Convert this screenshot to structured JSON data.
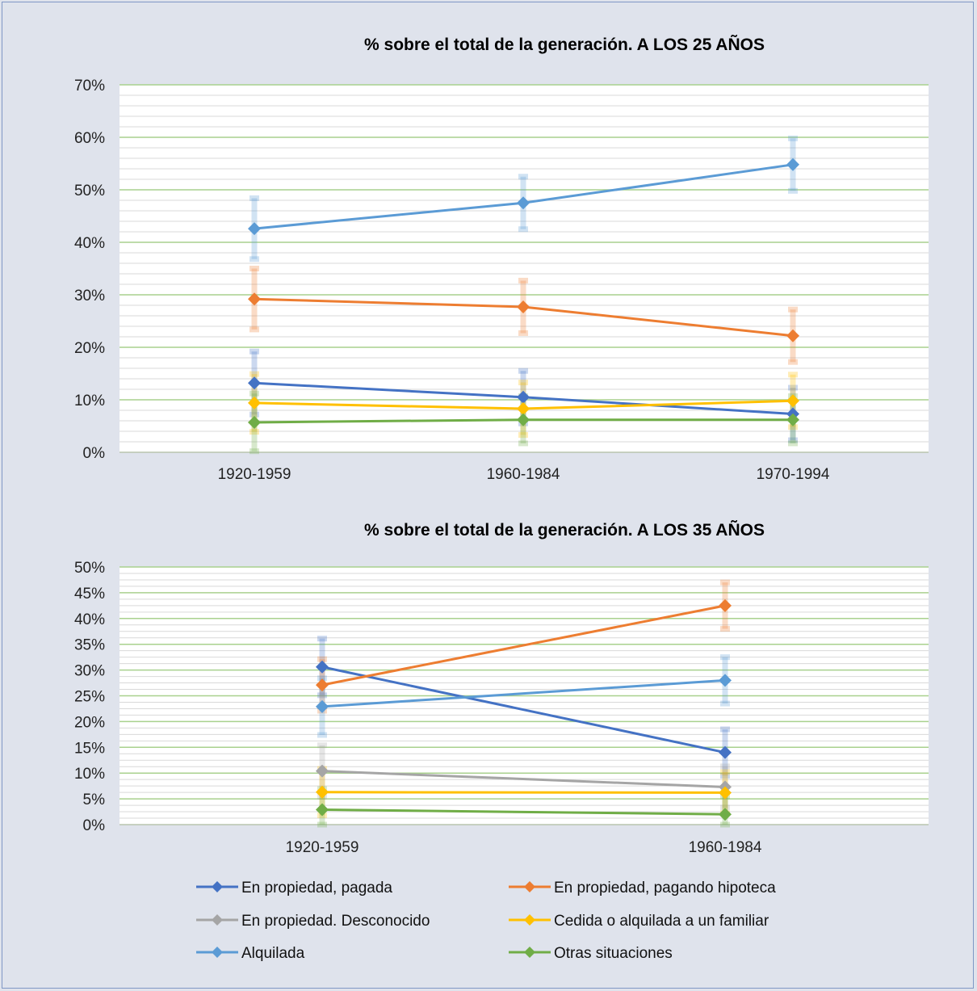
{
  "chart_data": [
    {
      "type": "line",
      "title": "% sobre el total de la generación. A LOS 25 AÑOS",
      "categories": [
        "1920-1959",
        "1960-1984",
        "1970-1994"
      ],
      "ylim": [
        0,
        0.7
      ],
      "y_major_ticks": [
        "0%",
        "10%",
        "20%",
        "30%",
        "40%",
        "50%",
        "60%",
        "70%"
      ],
      "grid": true,
      "series": [
        {
          "name": "En propiedad, pagada",
          "color": "#4472c4",
          "values": [
            0.132,
            0.105,
            0.073
          ],
          "err": [
            0.06,
            0.05,
            0.05
          ]
        },
        {
          "name": "En propiedad, pagando hipoteca",
          "color": "#ed7d31",
          "values": [
            0.292,
            0.277,
            0.222
          ],
          "err": [
            0.058,
            0.05,
            0.05
          ]
        },
        {
          "name": "Cedida o alquilada a un familiar",
          "color": "#ffc000",
          "values": [
            0.094,
            0.083,
            0.098
          ],
          "err": [
            0.055,
            0.05,
            0.05
          ]
        },
        {
          "name": "Alquilada",
          "color": "#5b9bd5",
          "values": [
            0.426,
            0.475,
            0.548
          ],
          "err": [
            0.058,
            0.05,
            0.05
          ]
        },
        {
          "name": "Otras situaciones",
          "color": "#70ad47",
          "values": [
            0.057,
            0.062,
            0.062
          ],
          "err": [
            0.055,
            0.045,
            0.045
          ]
        }
      ]
    },
    {
      "type": "line",
      "title": "% sobre el total de la generación. A LOS 35 AÑOS",
      "categories": [
        "1920-1959",
        "1960-1984"
      ],
      "ylim": [
        0,
        0.5
      ],
      "y_major_ticks": [
        "0%",
        "5%",
        "10%",
        "15%",
        "20%",
        "25%",
        "30%",
        "35%",
        "40%",
        "45%",
        "50%"
      ],
      "grid": true,
      "series": [
        {
          "name": "En propiedad, pagada",
          "color": "#4472c4",
          "values": [
            0.306,
            0.14
          ],
          "err": [
            0.055,
            0.045
          ]
        },
        {
          "name": "En propiedad, pagando hipoteca",
          "color": "#ed7d31",
          "values": [
            0.271,
            0.425
          ],
          "err": [
            0.05,
            0.045
          ]
        },
        {
          "name": "En propiedad. Desconocido",
          "color": "#a5a5a5",
          "values": [
            0.104,
            0.073
          ],
          "err": [
            0.05,
            0.04
          ]
        },
        {
          "name": "Cedida o alquilada a un familiar",
          "color": "#ffc000",
          "values": [
            0.063,
            0.062
          ],
          "err": [
            0.045,
            0.04
          ]
        },
        {
          "name": "Alquilada",
          "color": "#5b9bd5",
          "values": [
            0.229,
            0.28
          ],
          "err": [
            0.055,
            0.045
          ]
        },
        {
          "name": "Otras situaciones",
          "color": "#70ad47",
          "values": [
            0.029,
            0.02
          ],
          "err": [
            0.04,
            0.035
          ]
        }
      ]
    }
  ],
  "legend": {
    "placement": "bottom",
    "items": [
      {
        "label": "En propiedad, pagada",
        "color": "#4472c4"
      },
      {
        "label": "En propiedad, pagando hipoteca",
        "color": "#ed7d31"
      },
      {
        "label": "En propiedad. Desconocido",
        "color": "#a5a5a5"
      },
      {
        "label": "Cedida o alquilada a un familiar",
        "color": "#ffc000"
      },
      {
        "label": "Alquilada",
        "color": "#5b9bd5"
      },
      {
        "label": "Otras situaciones",
        "color": "#70ad47"
      }
    ]
  }
}
